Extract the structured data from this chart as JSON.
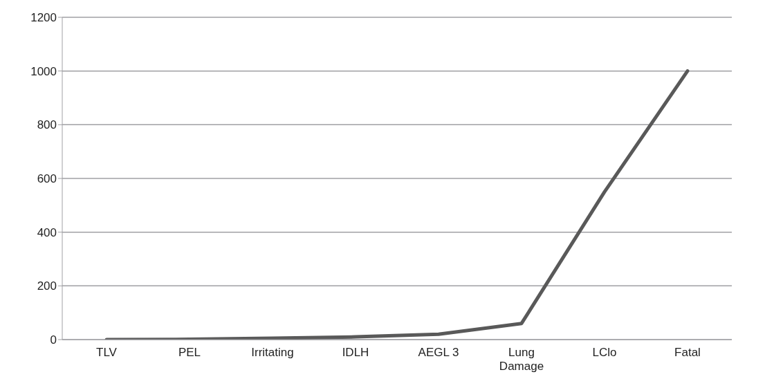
{
  "chart_data": {
    "type": "line",
    "categories": [
      "TLV",
      "PEL",
      "Irritating",
      "IDLH",
      "AEGL 3",
      "Lung Damage",
      "LClo",
      "Fatal"
    ],
    "series": [
      {
        "color": "#595959",
        "values": [
          0,
          1,
          5,
          10,
          20,
          60,
          550,
          1000
        ]
      }
    ],
    "ylim": [
      0,
      1200
    ],
    "yticks": [
      0,
      200,
      400,
      600,
      800,
      1000,
      1200
    ],
    "grid": "y",
    "marker": "none",
    "line_style": "solid"
  }
}
